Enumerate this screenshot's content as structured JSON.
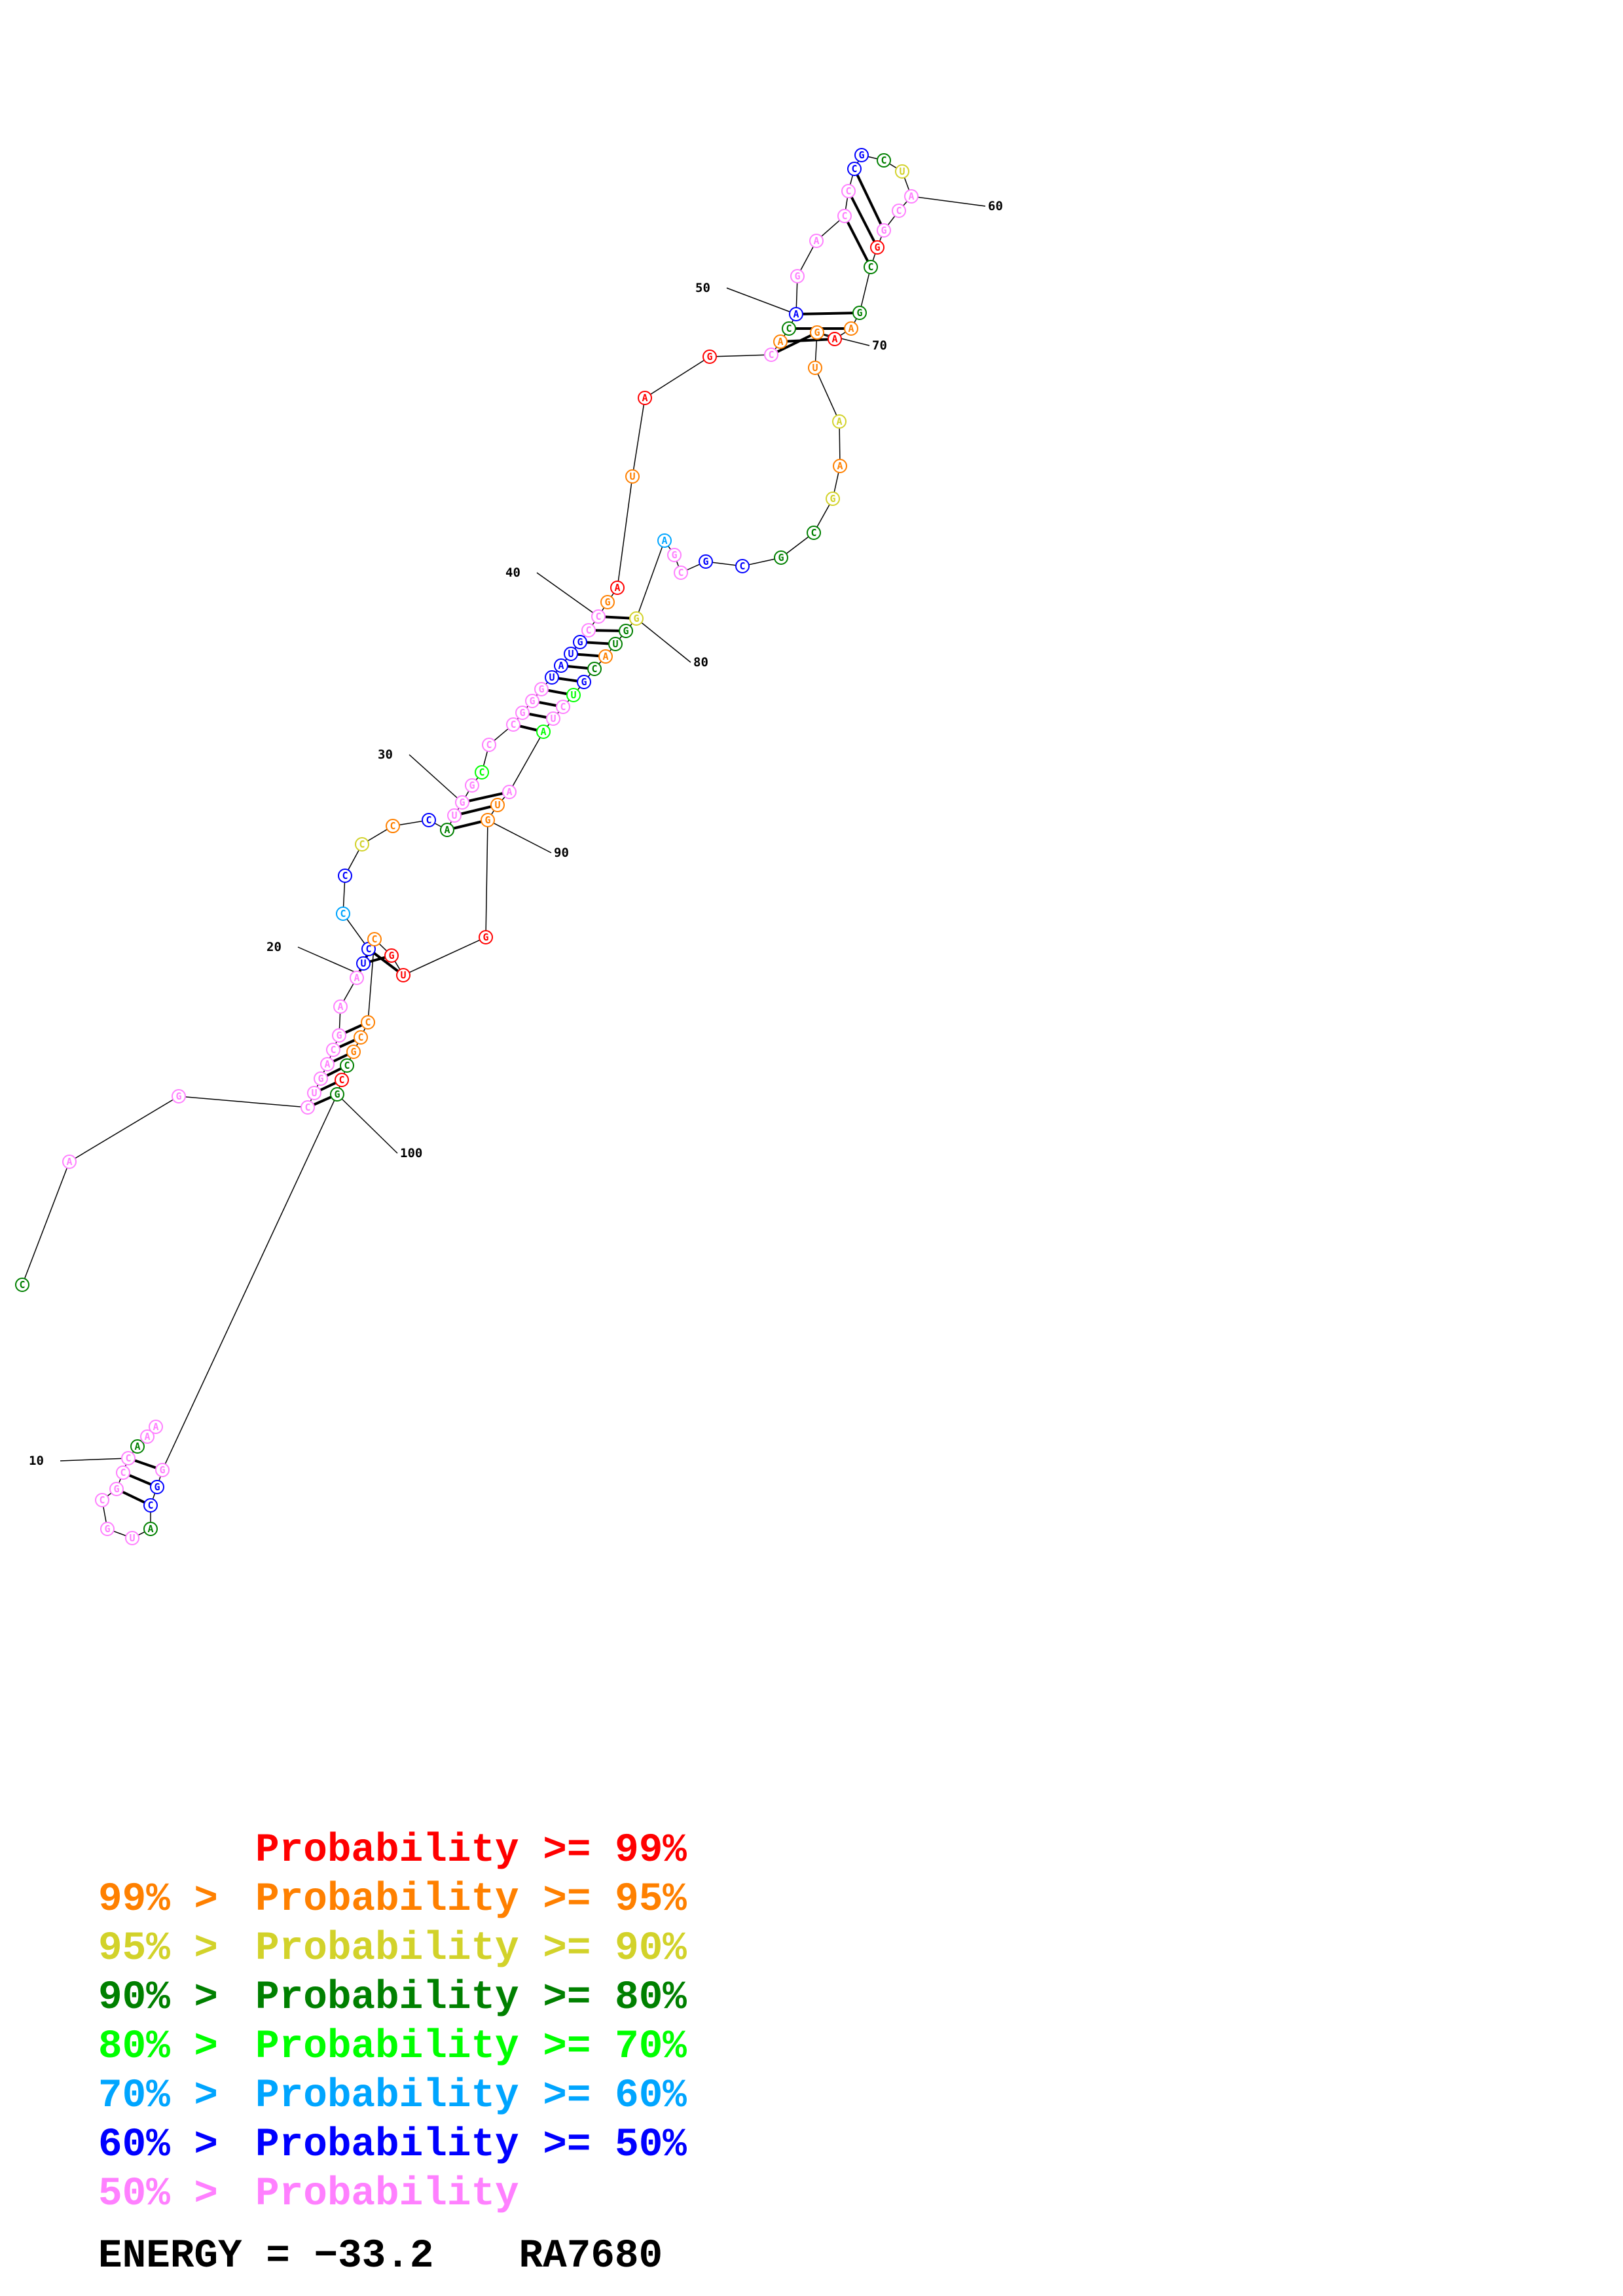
{
  "colors": {
    "p99": "#ff0000",
    "p95": "#ff8000",
    "p90": "#d2d22a",
    "p80": "#008000",
    "p70": "#00ff00",
    "p60": "#00a5ff",
    "p50": "#0000ff",
    "plow": "#ff80ff"
  },
  "structure": {
    "sequence": "CAGCUGACGAAUCCCCCCAUGGCCCGGGUAUGCCGAUAGCACAGACCCGCUACGGCGAAGUAAGCGCGCGAGGUACGUCUAAUGGUGCCCGCCGGGCAUGCGCCAAA",
    "position_labels": [
      "10",
      "20",
      "30",
      "40",
      "50",
      "60",
      "70",
      "80",
      "90",
      "100"
    ]
  },
  "legend": {
    "rows": [
      {
        "prefix": "",
        "text": "Probability >= 99%",
        "color": "#ff0000"
      },
      {
        "prefix": "99% > ",
        "text": "Probability >= 95%",
        "color": "#ff8000"
      },
      {
        "prefix": "95% > ",
        "text": "Probability >= 90%",
        "color": "#d2d22a"
      },
      {
        "prefix": "90% > ",
        "text": "Probability >= 80%",
        "color": "#008000"
      },
      {
        "prefix": "80% > ",
        "text": "Probability >= 70%",
        "color": "#00ff00"
      },
      {
        "prefix": "70% > ",
        "text": "Probability >= 60%",
        "color": "#00a5ff"
      },
      {
        "prefix": "60% > ",
        "text": "Probability >= 50%",
        "color": "#0000ff"
      },
      {
        "prefix": "50% > ",
        "text": "Probability",
        "color": "#ff80ff"
      }
    ]
  },
  "footer": {
    "energy_label": "ENERGY = ",
    "energy_value": "−33.2",
    "structure_id": "RA7680"
  }
}
